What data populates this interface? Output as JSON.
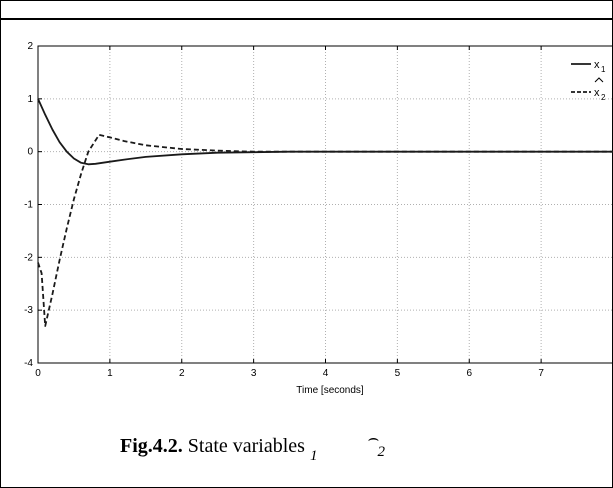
{
  "chart_data": {
    "type": "line",
    "title": "",
    "xlabel": "Time [seconds]",
    "ylabel": "",
    "xlim": [
      0,
      8
    ],
    "ylim": [
      -4,
      2
    ],
    "x_ticks": [
      "0",
      "1",
      "2",
      "3",
      "4",
      "5",
      "6",
      "7"
    ],
    "y_ticks": [
      "2",
      "1",
      "0",
      "-1",
      "-2",
      "-3",
      "-4"
    ],
    "grid": true,
    "legend_position": "top-right",
    "series": [
      {
        "name": "x1",
        "style": "solid",
        "color": "#1a1a1a",
        "x": [
          0,
          0.1,
          0.2,
          0.3,
          0.4,
          0.5,
          0.6,
          0.7,
          0.8,
          1.0,
          1.2,
          1.5,
          2.0,
          2.5,
          3.0,
          3.5,
          4.0,
          5.0,
          6.0,
          7.0,
          8.0
        ],
        "y": [
          1.0,
          0.7,
          0.42,
          0.18,
          0.0,
          -0.13,
          -0.21,
          -0.24,
          -0.23,
          -0.19,
          -0.15,
          -0.1,
          -0.05,
          -0.02,
          -0.01,
          0.0,
          0.0,
          0.0,
          0.0,
          0.0,
          0.0
        ]
      },
      {
        "name": "x2 (estimate)",
        "style": "dashed",
        "color": "#1a1a1a",
        "x": [
          0,
          0.05,
          0.1,
          0.2,
          0.3,
          0.4,
          0.5,
          0.6,
          0.7,
          0.85,
          1.0,
          1.2,
          1.5,
          2.0,
          2.5,
          3.0,
          4.0,
          5.0,
          6.0,
          7.0,
          8.0
        ],
        "y": [
          -2.1,
          -2.3,
          -3.3,
          -2.7,
          -2.05,
          -1.45,
          -0.9,
          -0.42,
          0.0,
          0.32,
          0.27,
          0.2,
          0.12,
          0.05,
          0.02,
          0.0,
          0.0,
          0.0,
          0.0,
          0.0,
          0.0
        ]
      }
    ]
  },
  "legend": {
    "x1_label": "x",
    "x1_sub": "1",
    "x2_label": "x",
    "x2_sub": "2"
  },
  "caption": {
    "fig": "Fig.4.2.",
    "text": " State variables ",
    "sub1": "1",
    "sub2": "2"
  }
}
